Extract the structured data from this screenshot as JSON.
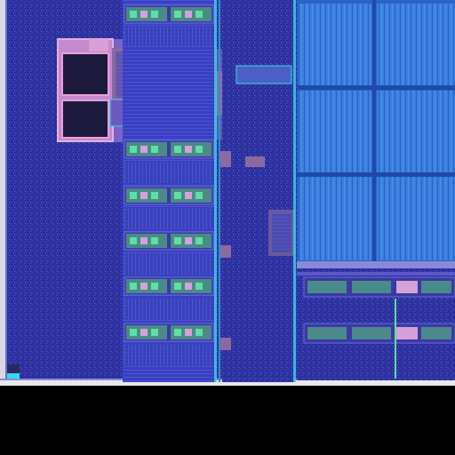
{
  "image": {
    "subject": "die-photo",
    "colors": {
      "background": "#000000",
      "substrate": "#2c2f9c",
      "substrate_light": "#3d44c4",
      "memory_array": "#3a7fe0",
      "memory_array_dark": "#2d62c8",
      "trace_cyan": "#38d8e8",
      "trace_green": "#5de0a0",
      "metal_pink": "#d38ad0",
      "pad_dark": "#1a1a3a",
      "edge_white": "#e8e8f0",
      "analog_pink": "#c36bc0"
    }
  }
}
